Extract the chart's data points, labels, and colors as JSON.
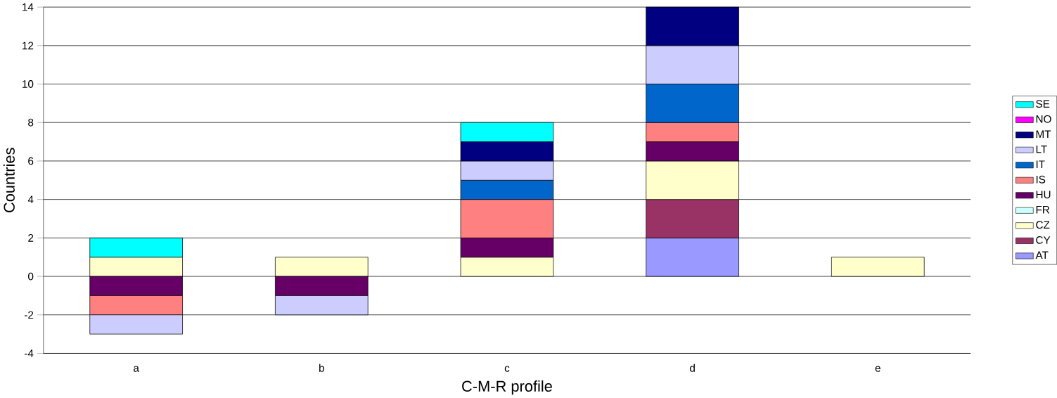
{
  "chart_data": {
    "type": "bar",
    "stacked": true,
    "xlabel": "C-M-R profile",
    "ylabel": "Countries",
    "categories": [
      "a",
      "b",
      "c",
      "d",
      "e"
    ],
    "series": [
      {
        "name": "AT",
        "color": "#9999ff",
        "values": [
          0,
          0,
          0,
          2,
          0
        ]
      },
      {
        "name": "CY",
        "color": "#993366",
        "values": [
          0,
          0,
          0,
          2,
          0
        ]
      },
      {
        "name": "CZ",
        "color": "#ffffcc",
        "values": [
          1,
          1,
          1,
          2,
          1
        ]
      },
      {
        "name": "FR",
        "color": "#ccffff",
        "values": [
          0,
          0,
          0,
          0,
          0
        ]
      },
      {
        "name": "HU",
        "color": "#660066",
        "values": [
          -1,
          -1,
          1,
          1,
          0
        ]
      },
      {
        "name": "IS",
        "color": "#ff8080",
        "values": [
          -1,
          0,
          2,
          1,
          0
        ]
      },
      {
        "name": "IT",
        "color": "#0066cc",
        "values": [
          0,
          0,
          1,
          2,
          0
        ]
      },
      {
        "name": "LT",
        "color": "#ccccff",
        "values": [
          -1,
          -1,
          1,
          2,
          0
        ]
      },
      {
        "name": "MT",
        "color": "#000080",
        "values": [
          0,
          0,
          1,
          2,
          0
        ]
      },
      {
        "name": "NO",
        "color": "#ff00ff",
        "values": [
          0,
          0,
          0,
          0,
          0
        ]
      },
      {
        "name": "SE",
        "color": "#00ffff",
        "values": [
          1,
          0,
          1,
          0,
          0
        ]
      }
    ],
    "ylim": [
      -4,
      14
    ],
    "yticks": [
      -4,
      -2,
      0,
      2,
      4,
      6,
      8,
      10,
      12,
      14
    ],
    "grid": "y",
    "legend": "right"
  }
}
